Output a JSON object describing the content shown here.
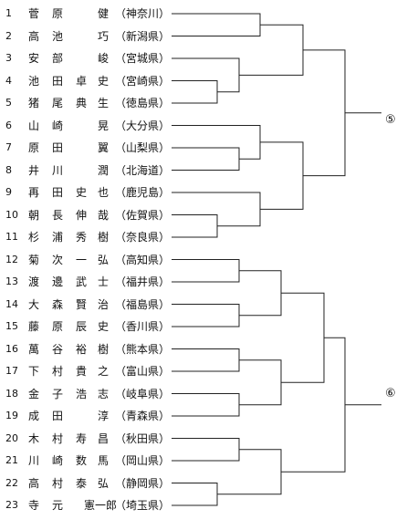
{
  "players": [
    {
      "no": "1",
      "name": [
        "菅",
        "原",
        "",
        "健"
      ],
      "pref": "（神奈川）"
    },
    {
      "no": "2",
      "name": [
        "高",
        "池",
        "",
        "巧"
      ],
      "pref": "（新潟県）"
    },
    {
      "no": "3",
      "name": [
        "安",
        "部",
        "",
        "峻"
      ],
      "pref": "（宮城県）"
    },
    {
      "no": "4",
      "name": [
        "池",
        "田",
        "卓",
        "史"
      ],
      "pref": "（宮崎県）"
    },
    {
      "no": "5",
      "name": [
        "猪",
        "尾",
        "典",
        "生"
      ],
      "pref": "（徳島県）"
    },
    {
      "no": "6",
      "name": [
        "山",
        "崎",
        "",
        "晃"
      ],
      "pref": "（大分県）"
    },
    {
      "no": "7",
      "name": [
        "原",
        "田",
        "",
        "翼"
      ],
      "pref": "（山梨県）"
    },
    {
      "no": "8",
      "name": [
        "井",
        "川",
        "",
        "潤"
      ],
      "pref": "（北海道）"
    },
    {
      "no": "9",
      "name": [
        "再",
        "田",
        "史",
        "也"
      ],
      "pref": "（鹿児島）"
    },
    {
      "no": "10",
      "name": [
        "朝",
        "長",
        "伸",
        "哉"
      ],
      "pref": "（佐賀県）"
    },
    {
      "no": "11",
      "name": [
        "杉",
        "浦",
        "秀",
        "樹"
      ],
      "pref": "（奈良県）"
    },
    {
      "no": "12",
      "name": [
        "菊",
        "次",
        "一",
        "弘"
      ],
      "pref": "（高知県）"
    },
    {
      "no": "13",
      "name": [
        "渡",
        "邊",
        "武",
        "士"
      ],
      "pref": "（福井県）"
    },
    {
      "no": "14",
      "name": [
        "大",
        "森",
        "賢",
        "治"
      ],
      "pref": "（福島県）"
    },
    {
      "no": "15",
      "name": [
        "藤",
        "原",
        "辰",
        "史"
      ],
      "pref": "（香川県）"
    },
    {
      "no": "16",
      "name": [
        "萬",
        "谷",
        "裕",
        "樹"
      ],
      "pref": "（熊本県）"
    },
    {
      "no": "17",
      "name": [
        "下",
        "村",
        "貴",
        "之"
      ],
      "pref": "（富山県）"
    },
    {
      "no": "18",
      "name": [
        "金",
        "子",
        "浩",
        "志"
      ],
      "pref": "（岐阜県）"
    },
    {
      "no": "19",
      "name": [
        "成",
        "田",
        "",
        "淳"
      ],
      "pref": "（青森県）"
    },
    {
      "no": "20",
      "name": [
        "木",
        "村",
        "寿",
        "昌"
      ],
      "pref": "（秋田県）"
    },
    {
      "no": "21",
      "name": [
        "川",
        "崎",
        "数",
        "馬"
      ],
      "pref": "（岡山県）"
    },
    {
      "no": "22",
      "name": [
        "高",
        "村",
        "泰",
        "弘"
      ],
      "pref": "（静岡県）"
    },
    {
      "no": "23",
      "name": [
        "寺",
        "元",
        "",
        "憲一郎"
      ],
      "pref": "（埼玉県）"
    }
  ],
  "results": [
    "⑤",
    "⑥"
  ]
}
